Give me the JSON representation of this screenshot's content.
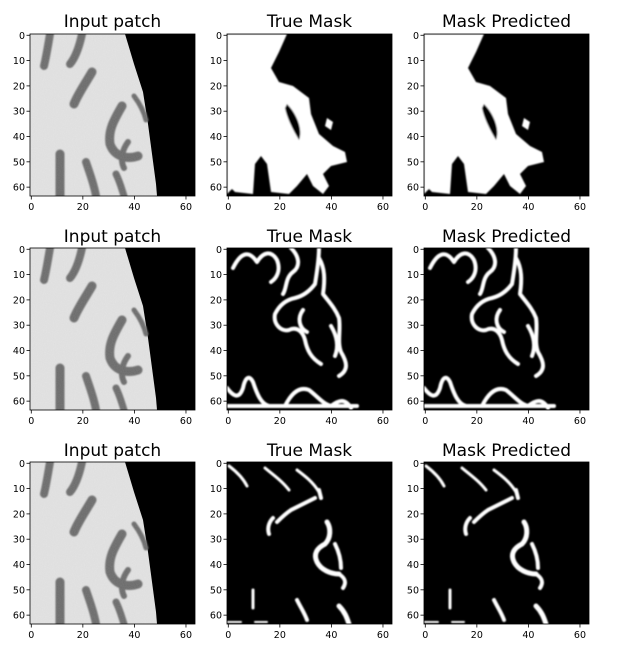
{
  "figure": {
    "rows": [
      {
        "panels": [
          {
            "title": "Input patch",
            "kind": "mri"
          },
          {
            "title": "True Mask",
            "kind": "mask_white"
          },
          {
            "title": "Mask Predicted",
            "kind": "mask_white"
          }
        ]
      },
      {
        "panels": [
          {
            "title": "Input patch",
            "kind": "mri"
          },
          {
            "title": "True Mask",
            "kind": "mask_gray"
          },
          {
            "title": "Mask Predicted",
            "kind": "mask_gray"
          }
        ]
      },
      {
        "panels": [
          {
            "title": "Input patch",
            "kind": "mri"
          },
          {
            "title": "True Mask",
            "kind": "mask_csf"
          },
          {
            "title": "Mask Predicted",
            "kind": "mask_csf"
          }
        ]
      }
    ],
    "x_ticks": [
      "0",
      "20",
      "40",
      "60"
    ],
    "y_ticks": [
      "0",
      "10",
      "20",
      "30",
      "40",
      "50",
      "60"
    ],
    "colors": {
      "background": "#000000",
      "mask": "#ffffff",
      "tissue_light": "#e4e4e4",
      "tissue_dark": "#6a6a6a"
    }
  }
}
